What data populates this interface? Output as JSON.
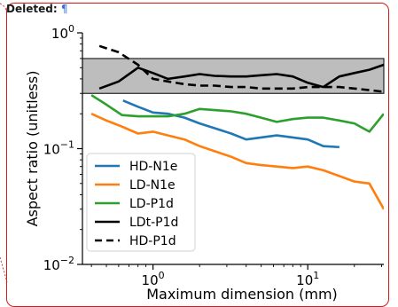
{
  "balloon": {
    "label": "Deleted:",
    "pilcrow": "¶",
    "accent": "#d21a1a"
  },
  "chart_data": {
    "type": "line",
    "xscale": "log",
    "yscale": "log",
    "xlim": [
      0.35,
      31
    ],
    "ylim": [
      0.01,
      1.0
    ],
    "xlabel": "Maximum dimension (mm)",
    "ylabel": "Aspect ratio (unitless)",
    "xticks": [
      {
        "value": 1,
        "base": "10",
        "exp": "0"
      },
      {
        "value": 10,
        "base": "10",
        "exp": "1"
      }
    ],
    "yticks": [
      {
        "value": 0.01,
        "base": "10",
        "exp": "−2"
      },
      {
        "value": 0.1,
        "base": "10",
        "exp": "−1"
      },
      {
        "value": 1,
        "base": "10",
        "exp": "0"
      }
    ],
    "band": {
      "y_low": 0.3,
      "y_high": 0.6,
      "color": "#bdbdbd"
    },
    "legend_position": "lower-left",
    "series": [
      {
        "name": "HD-N1e",
        "color": "#1f77b4",
        "dash": "solid",
        "x": [
          0.64,
          0.8,
          1.0,
          1.25,
          1.6,
          2.0,
          2.5,
          3.2,
          4.0,
          5.0,
          6.3,
          8.0,
          10.0,
          12.6,
          16.0
        ],
        "y": [
          0.26,
          0.23,
          0.205,
          0.2,
          0.185,
          0.165,
          0.15,
          0.135,
          0.12,
          0.125,
          0.13,
          0.125,
          0.12,
          0.105,
          0.103
        ]
      },
      {
        "name": "LD-N1e",
        "color": "#ff7f0e",
        "dash": "solid",
        "x": [
          0.4,
          0.5,
          0.63,
          0.8,
          1.0,
          1.25,
          1.6,
          2.0,
          2.5,
          3.2,
          4.0,
          5.0,
          6.3,
          8.0,
          10.0,
          12.6,
          16.0,
          20.0,
          25.0,
          31.0
        ],
        "y": [
          0.2,
          0.175,
          0.155,
          0.135,
          0.14,
          0.13,
          0.12,
          0.105,
          0.095,
          0.085,
          0.075,
          0.072,
          0.07,
          0.068,
          0.07,
          0.065,
          0.058,
          0.052,
          0.05,
          0.03
        ]
      },
      {
        "name": "LD-P1d",
        "color": "#2ca02c",
        "dash": "solid",
        "x": [
          0.4,
          0.5,
          0.63,
          0.8,
          1.0,
          1.25,
          1.6,
          2.0,
          2.5,
          3.2,
          4.0,
          5.0,
          6.3,
          8.0,
          10.0,
          12.6,
          16.0,
          20.0,
          25.0,
          31.0
        ],
        "y": [
          0.29,
          0.24,
          0.195,
          0.19,
          0.19,
          0.19,
          0.2,
          0.22,
          0.215,
          0.21,
          0.2,
          0.185,
          0.17,
          0.18,
          0.185,
          0.185,
          0.175,
          0.165,
          0.14,
          0.2
        ]
      },
      {
        "name": "LDt-P1d",
        "color": "#000000",
        "dash": "solid",
        "x": [
          0.45,
          0.6,
          0.8,
          1.0,
          1.25,
          1.6,
          2.0,
          2.5,
          3.2,
          4.0,
          5.0,
          6.3,
          8.0,
          10.0,
          12.6,
          16.0,
          20.0,
          25.0,
          31.0
        ],
        "y": [
          0.33,
          0.38,
          0.5,
          0.45,
          0.4,
          0.42,
          0.44,
          0.425,
          0.42,
          0.42,
          0.43,
          0.44,
          0.42,
          0.37,
          0.34,
          0.42,
          0.45,
          0.48,
          0.53
        ]
      },
      {
        "name": "HD-P1d",
        "color": "#000000",
        "dash": "dashed",
        "x": [
          0.45,
          0.6,
          0.8,
          1.0,
          1.25,
          1.6,
          2.0,
          2.5,
          3.2,
          4.0,
          5.0,
          6.3,
          8.0,
          10.0,
          12.6,
          16.0,
          20.0,
          25.0,
          31.0
        ],
        "y": [
          0.77,
          0.68,
          0.53,
          0.4,
          0.38,
          0.36,
          0.35,
          0.35,
          0.34,
          0.34,
          0.33,
          0.33,
          0.33,
          0.34,
          0.34,
          0.34,
          0.33,
          0.32,
          0.31
        ]
      }
    ]
  }
}
